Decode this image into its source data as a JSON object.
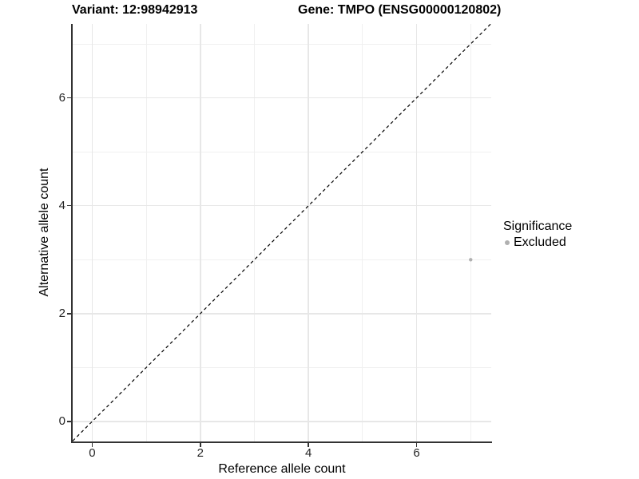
{
  "titles": {
    "variant": "Variant: 12:98942913",
    "gene": "Gene: TMPO (ENSG00000120802)"
  },
  "axes": {
    "x": {
      "label": "Reference allele count"
    },
    "y": {
      "label": "Alternative allele count"
    }
  },
  "legend": {
    "title": "Significance",
    "items": [
      {
        "label": "Excluded",
        "color": "#b0b0b0"
      }
    ]
  },
  "colors": {
    "axis_line": "#333333",
    "tick_mark": "#333333",
    "grid_major": "#e7e7e7",
    "grid_minor": "#f0f0f0",
    "dashed_line": "#000000",
    "point": "#b0b0b0",
    "background": "#ffffff"
  },
  "chart_data": {
    "type": "scatter",
    "title": "Variant: 12:98942913 | Gene: TMPO (ENSG00000120802)",
    "xlabel": "Reference allele count",
    "ylabel": "Alternative allele count",
    "xlim": [
      -0.36,
      7.38
    ],
    "ylim": [
      -0.37,
      7.37
    ],
    "x_ticks": [
      0,
      2,
      4,
      6
    ],
    "y_ticks": [
      0,
      2,
      4,
      6
    ],
    "x_minor_ticks": [
      1,
      3,
      5,
      7
    ],
    "y_minor_ticks": [
      1,
      3,
      5,
      7
    ],
    "grid": "major+minor",
    "legend_position": "right",
    "series": [
      {
        "name": "Excluded",
        "color": "#b0b0b0",
        "points": [
          {
            "x": 7,
            "y": 3
          }
        ],
        "point_radius": 2.2
      }
    ],
    "reference_line": {
      "type": "identity",
      "slope": 1,
      "intercept": 0,
      "style": "dashed",
      "color": "#000000"
    }
  }
}
